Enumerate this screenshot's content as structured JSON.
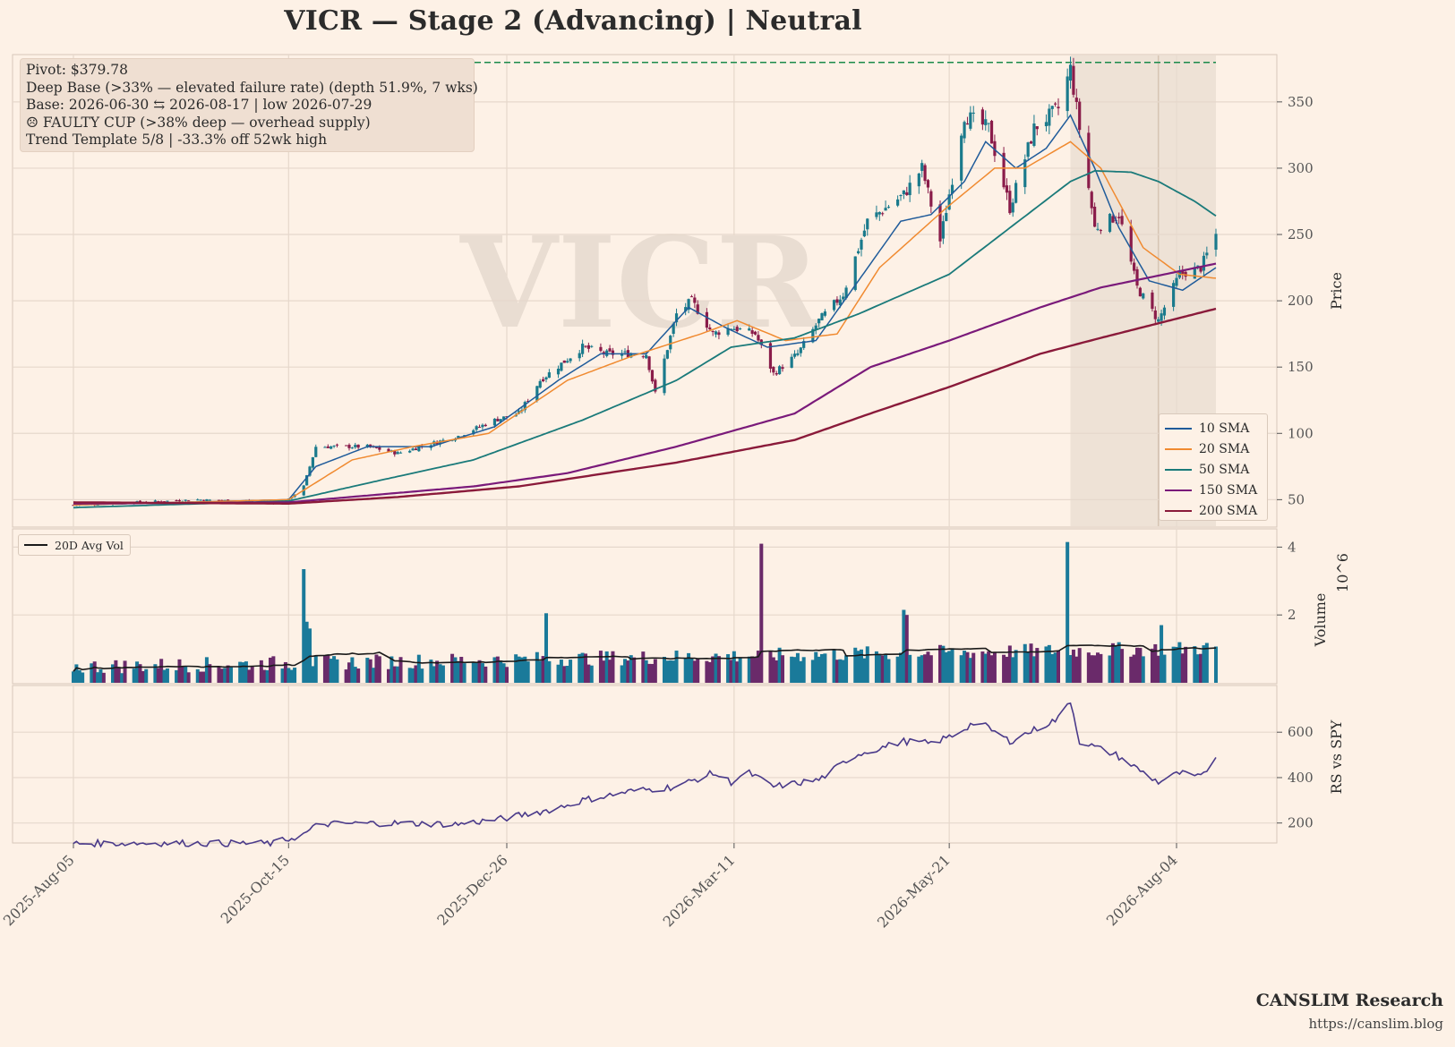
{
  "title": "VICR  —  Stage 2 (Advancing)  |  Neutral",
  "watermark": "VICR",
  "info_box": [
    "Pivot: $379.78",
    "Deep Base (>33% — elevated failure rate)  (depth 51.9%, 7 wks)",
    "Base: 2026-06-30 ⇆ 2026-08-17  |  low 2026-07-29",
    "☹ FAULTY CUP (>38% deep — overhead supply)",
    "Trend Template 5/8  |  -33.3% off 52wk high"
  ],
  "footer": {
    "brand": "CANSLIM Research",
    "url": "https://canslim.blog"
  },
  "colors": {
    "background": "#fdf1e6",
    "up": "#1a7a8c",
    "down": "#8a1c4a",
    "vol_up": "#1a7a9a",
    "vol_down": "#6a2a6a",
    "sma10": "#1f5b9a",
    "sma20": "#f08a30",
    "sma50": "#1a7a7a",
    "sma150": "#7a1a7a",
    "sma200": "#8a1a3a",
    "pivot": "#1a8a4a",
    "rs": "#4a3a8a",
    "base_shade": "#e8dcd0"
  },
  "chart_data": {
    "type": "candlestick",
    "panels": [
      "price",
      "volume",
      "rs"
    ],
    "x_start": "2025-08-05",
    "x_end": "2026-08-17",
    "x_ticks": [
      "2025-Aug-05",
      "2025-Oct-15",
      "2025-Dec-26",
      "2026-Mar-11",
      "2026-May-21",
      "2026-Aug-04"
    ],
    "price": {
      "ylabel": "Price",
      "ylim": [
        30,
        385
      ],
      "yticks": [
        50,
        100,
        150,
        200,
        250,
        300,
        350
      ],
      "pivot": 379.78,
      "base_shade": {
        "start": "2026-06-30",
        "end": "2026-08-17",
        "low_date": "2026-07-29"
      },
      "close_anchors": [
        [
          "2025-08-05",
          46
        ],
        [
          "2025-09-15",
          50
        ],
        [
          "2025-10-10",
          48
        ],
        [
          "2025-10-15",
          50
        ],
        [
          "2025-10-20",
          60
        ],
        [
          "2025-10-24",
          90
        ],
        [
          "2025-11-10",
          90
        ],
        [
          "2025-11-20",
          85
        ],
        [
          "2025-12-10",
          98
        ],
        [
          "2025-12-22",
          110
        ],
        [
          "2025-12-30",
          115
        ],
        [
          "2026-01-06",
          140
        ],
        [
          "2026-01-20",
          165
        ],
        [
          "2026-01-28",
          160
        ],
        [
          "2026-02-10",
          160
        ],
        [
          "2026-02-13",
          130
        ],
        [
          "2026-02-20",
          190
        ],
        [
          "2026-02-25",
          200
        ],
        [
          "2026-03-04",
          175
        ],
        [
          "2026-03-10",
          180
        ],
        [
          "2026-03-18",
          175
        ],
        [
          "2026-03-24",
          145
        ],
        [
          "2026-04-01",
          160
        ],
        [
          "2026-04-08",
          185
        ],
        [
          "2026-04-16",
          205
        ],
        [
          "2026-04-24",
          260
        ],
        [
          "2026-05-06",
          280
        ],
        [
          "2026-05-12",
          300
        ],
        [
          "2026-05-18",
          245
        ],
        [
          "2026-05-26",
          340
        ],
        [
          "2026-06-03",
          330
        ],
        [
          "2026-06-10",
          270
        ],
        [
          "2026-06-18",
          330
        ],
        [
          "2026-06-26",
          345
        ],
        [
          "2026-06-30",
          375
        ],
        [
          "2026-07-03",
          330
        ],
        [
          "2026-07-08",
          255
        ],
        [
          "2026-07-16",
          265
        ],
        [
          "2026-07-22",
          210
        ],
        [
          "2026-07-29",
          185
        ],
        [
          "2026-08-05",
          220
        ],
        [
          "2026-08-12",
          225
        ],
        [
          "2026-08-17",
          250
        ]
      ],
      "sma_anchors": {
        "10 SMA": [
          [
            "2025-08-05",
            46
          ],
          [
            "2025-10-15",
            50
          ],
          [
            "2025-10-24",
            75
          ],
          [
            "2025-11-10",
            90
          ],
          [
            "2025-12-01",
            90
          ],
          [
            "2025-12-22",
            105
          ],
          [
            "2026-01-12",
            140
          ],
          [
            "2026-01-26",
            160
          ],
          [
            "2026-02-10",
            160
          ],
          [
            "2026-02-24",
            195
          ],
          [
            "2026-03-08",
            180
          ],
          [
            "2026-03-22",
            165
          ],
          [
            "2026-04-07",
            170
          ],
          [
            "2026-04-21",
            215
          ],
          [
            "2026-05-05",
            260
          ],
          [
            "2026-05-15",
            265
          ],
          [
            "2026-05-26",
            290
          ],
          [
            "2026-06-02",
            320
          ],
          [
            "2026-06-12",
            300
          ],
          [
            "2026-06-22",
            315
          ],
          [
            "2026-06-30",
            340
          ],
          [
            "2026-07-08",
            300
          ],
          [
            "2026-07-16",
            255
          ],
          [
            "2026-07-26",
            215
          ],
          [
            "2026-08-06",
            208
          ],
          [
            "2026-08-17",
            225
          ]
        ],
        "20 SMA": [
          [
            "2025-08-05",
            46
          ],
          [
            "2025-10-15",
            50
          ],
          [
            "2025-11-05",
            80
          ],
          [
            "2025-11-25",
            90
          ],
          [
            "2025-12-20",
            100
          ],
          [
            "2026-01-15",
            140
          ],
          [
            "2026-02-05",
            158
          ],
          [
            "2026-02-28",
            175
          ],
          [
            "2026-03-12",
            185
          ],
          [
            "2026-03-28",
            170
          ],
          [
            "2026-04-14",
            175
          ],
          [
            "2026-04-28",
            225
          ],
          [
            "2026-05-20",
            270
          ],
          [
            "2026-06-05",
            300
          ],
          [
            "2026-06-15",
            300
          ],
          [
            "2026-06-30",
            320
          ],
          [
            "2026-07-10",
            300
          ],
          [
            "2026-07-24",
            240
          ],
          [
            "2026-08-05",
            220
          ],
          [
            "2026-08-17",
            217
          ]
        ],
        "50 SMA": [
          [
            "2025-08-05",
            44
          ],
          [
            "2025-10-15",
            49
          ],
          [
            "2025-11-15",
            65
          ],
          [
            "2025-12-15",
            80
          ],
          [
            "2026-01-20",
            110
          ],
          [
            "2026-02-20",
            140
          ],
          [
            "2026-03-10",
            165
          ],
          [
            "2026-03-31",
            172
          ],
          [
            "2026-04-21",
            190
          ],
          [
            "2026-05-21",
            220
          ],
          [
            "2026-06-10",
            255
          ],
          [
            "2026-06-30",
            290
          ],
          [
            "2026-07-08",
            298
          ],
          [
            "2026-07-20",
            297
          ],
          [
            "2026-07-29",
            290
          ],
          [
            "2026-08-10",
            275
          ],
          [
            "2026-08-17",
            264
          ]
        ],
        "150 SMA": [
          [
            "2025-08-05",
            47
          ],
          [
            "2025-10-15",
            48
          ],
          [
            "2025-12-15",
            60
          ],
          [
            "2026-01-15",
            70
          ],
          [
            "2026-02-20",
            90
          ],
          [
            "2026-03-31",
            115
          ],
          [
            "2026-04-25",
            150
          ],
          [
            "2026-05-21",
            170
          ],
          [
            "2026-06-20",
            195
          ],
          [
            "2026-07-10",
            210
          ],
          [
            "2026-08-17",
            228
          ]
        ],
        "200 SMA": [
          [
            "2025-08-05",
            48
          ],
          [
            "2025-10-15",
            47
          ],
          [
            "2025-11-20",
            52
          ],
          [
            "2025-12-30",
            60
          ],
          [
            "2026-02-20",
            78
          ],
          [
            "2026-03-31",
            95
          ],
          [
            "2026-04-25",
            115
          ],
          [
            "2026-05-21",
            135
          ],
          [
            "2026-06-20",
            160
          ],
          [
            "2026-07-10",
            172
          ],
          [
            "2026-08-17",
            194
          ]
        ]
      }
    },
    "volume": {
      "ylabel": "Volume",
      "scale_label": "10^6",
      "ylim": [
        0,
        4.3
      ],
      "yticks": [
        2,
        4
      ],
      "avg_legend": "20D Avg Vol",
      "spikes": [
        [
          "2025-10-20",
          3.35
        ],
        [
          "2025-10-21",
          1.8
        ],
        [
          "2025-10-22",
          1.6
        ],
        [
          "2026-01-08",
          2.05
        ],
        [
          "2026-03-20",
          4.1
        ],
        [
          "2026-05-06",
          2.15
        ],
        [
          "2026-05-07",
          2.0
        ],
        [
          "2026-06-29",
          4.15
        ],
        [
          "2026-07-30",
          1.7
        ]
      ]
    },
    "rs": {
      "ylabel": "RS vs SPY",
      "ylim": [
        120,
        790
      ],
      "yticks": [
        200,
        400,
        600
      ],
      "anchors": [
        [
          "2025-08-05",
          110
        ],
        [
          "2025-09-01",
          112
        ],
        [
          "2025-10-10",
          110
        ],
        [
          "2025-10-20",
          150
        ],
        [
          "2025-10-25",
          195
        ],
        [
          "2025-11-15",
          200
        ],
        [
          "2025-12-10",
          195
        ],
        [
          "2025-12-25",
          220
        ],
        [
          "2026-01-10",
          260
        ],
        [
          "2026-01-20",
          300
        ],
        [
          "2026-02-05",
          340
        ],
        [
          "2026-02-20",
          360
        ],
        [
          "2026-03-04",
          420
        ],
        [
          "2026-03-10",
          380
        ],
        [
          "2026-03-16",
          420
        ],
        [
          "2026-03-24",
          360
        ],
        [
          "2026-04-08",
          390
        ],
        [
          "2026-04-20",
          500
        ],
        [
          "2026-05-06",
          560
        ],
        [
          "2026-05-15",
          550
        ],
        [
          "2026-05-23",
          590
        ],
        [
          "2026-05-30",
          650
        ],
        [
          "2026-06-10",
          560
        ],
        [
          "2026-06-26",
          660
        ],
        [
          "2026-06-30",
          740
        ],
        [
          "2026-07-03",
          560
        ],
        [
          "2026-07-15",
          500
        ],
        [
          "2026-07-29",
          380
        ],
        [
          "2026-08-05",
          420
        ],
        [
          "2026-08-12",
          400
        ],
        [
          "2026-08-17",
          490
        ]
      ]
    }
  }
}
